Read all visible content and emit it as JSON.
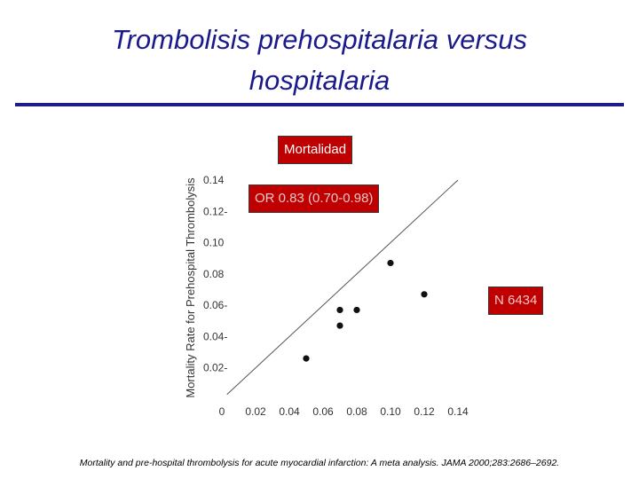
{
  "title": "Trombolisis prehospitalaria versus hospitalaria",
  "labels": {
    "mortalidad": "Mortalidad",
    "odds_ratio": "OR 0.83 (0.70-0.98)",
    "n": "N 6434"
  },
  "citation": "Mortality and pre-hospital thrombolysis for acute myocardial infarction: A meta analysis. JAMA 2000;283:2686–2692.",
  "colors": {
    "title": "#1a1a8c",
    "rule": "#1c1c8a",
    "label_bg": "#c00000"
  },
  "chart_data": {
    "type": "scatter",
    "title": "",
    "xlabel": "",
    "ylabel": "Mortality Rate for Prehospital Thrombolysis",
    "xlim": [
      0,
      0.14
    ],
    "ylim": [
      0,
      0.14
    ],
    "x_ticks": [
      "0",
      "0.02",
      "0.04",
      "0.06",
      "0.08",
      "0.10",
      "0.12",
      "0.14"
    ],
    "x_tick_values": [
      0,
      0.02,
      0.04,
      0.06,
      0.08,
      0.1,
      0.12,
      0.14
    ],
    "y_ticks": [
      "0.02-",
      "0.04-",
      "0.06-",
      "0.08",
      "0.10",
      "0.12-",
      "0.14"
    ],
    "y_tick_values": [
      0.02,
      0.04,
      0.06,
      0.08,
      0.1,
      0.12,
      0.14
    ],
    "reference_line": "identity",
    "points": [
      {
        "x": 0.05,
        "y": 0.026
      },
      {
        "x": 0.07,
        "y": 0.057
      },
      {
        "x": 0.07,
        "y": 0.047
      },
      {
        "x": 0.08,
        "y": 0.057
      },
      {
        "x": 0.1,
        "y": 0.087
      },
      {
        "x": 0.12,
        "y": 0.067
      }
    ]
  }
}
